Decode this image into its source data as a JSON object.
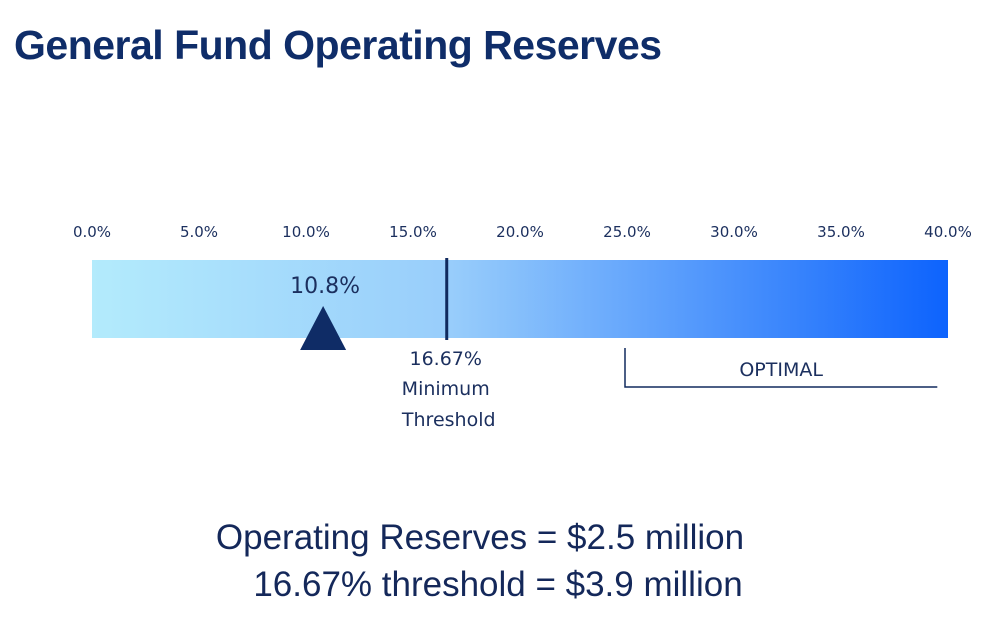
{
  "title": "General Fund Operating Reserves",
  "chart_data": {
    "type": "gauge",
    "axis_min": 0,
    "axis_max": 40,
    "tick_labels": [
      "0.0%",
      "5.0%",
      "10.0%",
      "15.0%",
      "20.0%",
      "25.0%",
      "30.0%",
      "35.0%",
      "40.0%"
    ],
    "tick_values": [
      0,
      5,
      10,
      15,
      20,
      25,
      30,
      35,
      40
    ],
    "current_value": 10.8,
    "current_label": "10.8%",
    "threshold_value": 16.67,
    "threshold_label": [
      "16.67%",
      "Minimum",
      "Threshold"
    ],
    "optimal_range": [
      25,
      39.5
    ],
    "optimal_label": "OPTIMAL",
    "gradient_colors": [
      "#b3ebfc",
      "#98cdfb",
      "#0d63fd"
    ]
  },
  "summary": {
    "line1": "Operating Reserves = $2.5 million",
    "line2": "16.67% threshold = $3.9 million"
  }
}
